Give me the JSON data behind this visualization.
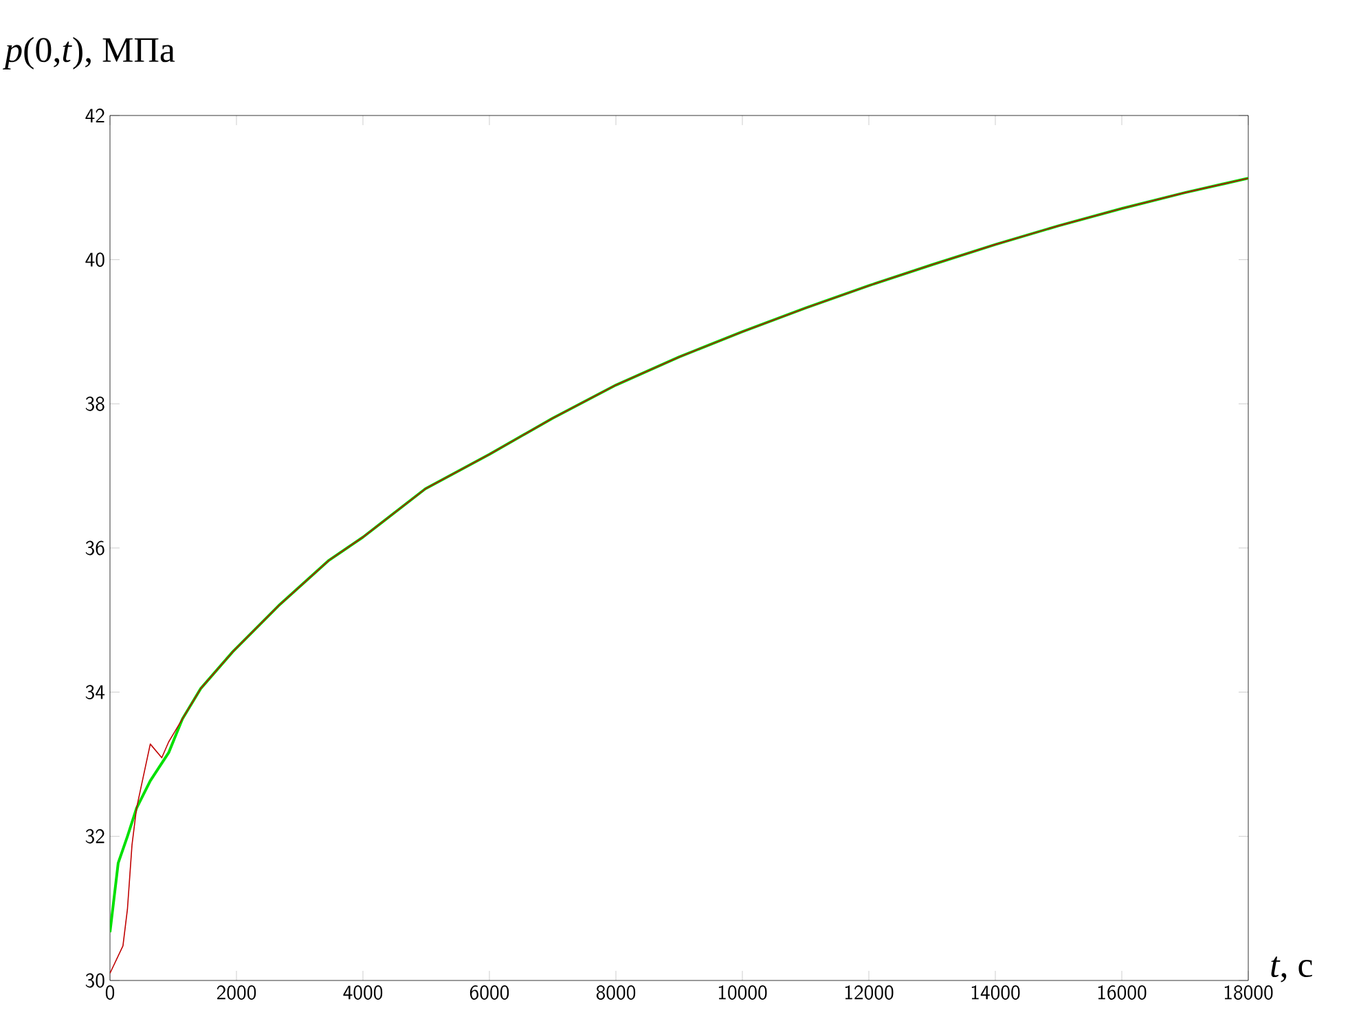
{
  "chart_data": {
    "type": "line",
    "ylabel": "*p*(0,*t*), МПа",
    "xlabel": "*t*, с",
    "xlim": [
      0,
      18000
    ],
    "ylim": [
      30,
      42
    ],
    "xticks": [
      0,
      2000,
      4000,
      6000,
      8000,
      10000,
      12000,
      14000,
      16000,
      18000
    ],
    "yticks": [
      30,
      32,
      34,
      36,
      38,
      40,
      42
    ],
    "grid": false,
    "marker": "none",
    "line_style": "solid",
    "series": [
      {
        "color": "#c00000",
        "x": [
          0,
          205,
          276,
          348,
          420,
          637,
          819,
          928,
          1146,
          1435,
          1941,
          2667,
          3463,
          4000,
          4985,
          6000,
          7000,
          8000,
          9000,
          10000,
          11000,
          12000,
          13000,
          14000,
          15000,
          16000,
          17000,
          18000
        ],
        "values": [
          30.1,
          30.48,
          30.99,
          31.88,
          32.39,
          33.28,
          33.09,
          33.31,
          33.63,
          34.05,
          34.56,
          35.2,
          35.83,
          36.15,
          36.82,
          37.3,
          37.8,
          38.26,
          38.65,
          39.0,
          39.33,
          39.64,
          39.93,
          40.21,
          40.47,
          40.71,
          40.93,
          41.13
        ]
      },
      {
        "color": "#00e000",
        "x": [
          0,
          130,
          276,
          420,
          637,
          928,
          1146,
          1435,
          1941,
          2667,
          3463,
          4000,
          4985,
          6000,
          7000,
          8000,
          9000,
          10000,
          11000,
          12000,
          13000,
          14000,
          15000,
          16000,
          17000,
          18000
        ],
        "values": [
          30.67,
          31.63,
          32.0,
          32.39,
          32.77,
          33.16,
          33.63,
          34.05,
          34.56,
          35.2,
          35.83,
          36.15,
          36.82,
          37.3,
          37.8,
          38.26,
          38.65,
          39.0,
          39.33,
          39.64,
          39.93,
          40.21,
          40.47,
          40.71,
          40.93,
          41.13
        ]
      }
    ]
  }
}
